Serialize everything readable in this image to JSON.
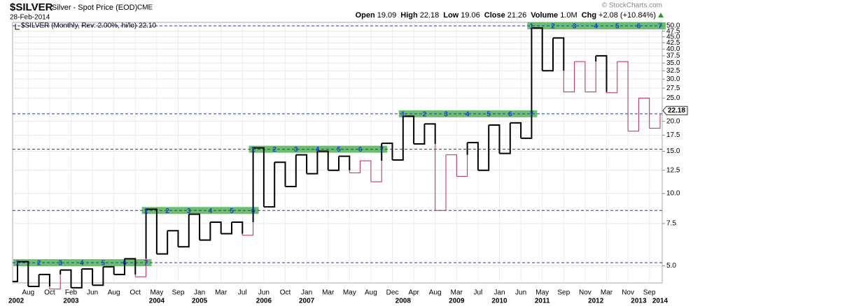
{
  "chart_data": {
    "type": "kagi",
    "symbol": "$SILVER",
    "title": "Silver - Spot Price (EOD)",
    "exchange": "CME",
    "date": "28-Feb-2014",
    "copyright": "© StockCharts.com",
    "quote": [
      {
        "label": "Open",
        "value": "19.09"
      },
      {
        "label": "High",
        "value": "22.18"
      },
      {
        "label": "Low",
        "value": "19.06"
      },
      {
        "label": "Close",
        "value": "21.26"
      },
      {
        "label": "Volume",
        "value": "1.0M"
      },
      {
        "label": "Chg",
        "value": "+2.08 (+10.84%)"
      }
    ],
    "legend": "$SILVER (Monthly, Rev: 2.00%, hi/lo) 22.10",
    "last_price": {
      "value": 22.18,
      "label": "22.18"
    },
    "months": [
      null,
      null,
      "Aug",
      null,
      "Oct",
      null,
      "Feb",
      null,
      "Jun",
      null,
      "Aug",
      null,
      "Oct",
      null,
      "May",
      null,
      "Sep",
      null,
      "Jan",
      null,
      "Mar",
      null,
      "Jul",
      null,
      "Jun",
      null,
      "Oct",
      null,
      "Jan",
      null,
      "Mar",
      null,
      "May",
      null,
      "Aug",
      null,
      "Dec",
      null,
      "Apr",
      null,
      "Aug",
      null,
      "Mar",
      null,
      "Jul",
      null,
      "Jan",
      null,
      "Jun",
      null,
      "May",
      null,
      "Sep",
      null,
      "Nov",
      null,
      "Mar",
      null,
      "Nov",
      null,
      "Sep",
      null
    ],
    "years": [
      "2002",
      null,
      null,
      null,
      null,
      null,
      "2003",
      null,
      null,
      null,
      null,
      null,
      null,
      null,
      "2004",
      null,
      null,
      null,
      "2005",
      null,
      null,
      null,
      null,
      null,
      "2006",
      null,
      null,
      null,
      "2007",
      null,
      null,
      null,
      null,
      null,
      null,
      null,
      null,
      "2008",
      null,
      null,
      null,
      null,
      "2009",
      null,
      null,
      null,
      "2010",
      null,
      null,
      null,
      "2011",
      null,
      null,
      null,
      null,
      "2012",
      null,
      null,
      null,
      "2013",
      null,
      "2014"
    ],
    "values": [
      4.3,
      5.2,
      4.1,
      4.6,
      4.0,
      4.8,
      4.05,
      4.85,
      4.15,
      4.95,
      4.6,
      5.35,
      4.5,
      8.6,
      5.6,
      7.0,
      6.0,
      8.2,
      6.4,
      7.6,
      6.8,
      7.6,
      6.7,
      15.5,
      8.8,
      13.5,
      10.7,
      14.5,
      12.1,
      15.0,
      12.5,
      14.3,
      12.2,
      13.7,
      11.2,
      16.2,
      13.8,
      21.0,
      16.1,
      19.5,
      8.5,
      14.5,
      11.8,
      16.3,
      12.5,
      19.3,
      14.7,
      19.7,
      17.0,
      49.0,
      32.5,
      44.5,
      26.5,
      35.5,
      26.5,
      37.5,
      26.3,
      35.5,
      18.2,
      25.0,
      18.7,
      21.5
    ],
    "yang_color": "#000000",
    "yin_color": "#c0245c",
    "bands": [
      {
        "level": 5.15,
        "columns": [
          1,
          13
        ],
        "labels": [
          1,
          2,
          3,
          4,
          5,
          6,
          7
        ]
      },
      {
        "level": 8.5,
        "columns": [
          13,
          23
        ],
        "labels": [
          1,
          2,
          3,
          4,
          5,
          6
        ]
      },
      {
        "level": 15.3,
        "columns": [
          23,
          35
        ],
        "labels": [
          1,
          2,
          3,
          4,
          5,
          6,
          7
        ]
      },
      {
        "level": 21.5,
        "columns": [
          37,
          49
        ],
        "labels": [
          1,
          2,
          3,
          4,
          5,
          6,
          7
        ]
      },
      {
        "level": 50.0,
        "columns": [
          49,
          61
        ],
        "labels": [
          1,
          2,
          3,
          4,
          5,
          6,
          7
        ]
      }
    ],
    "band_color": "#5cb85c",
    "line_color": "#2233cc",
    "log_scale": true,
    "grid": true,
    "ylim": [
      4.24,
      51.7
    ],
    "yticks": [
      {
        "value": 5,
        "label": "5.0"
      },
      {
        "value": 7.5,
        "label": "7.5"
      },
      {
        "value": 10,
        "label": "10.0"
      },
      {
        "value": 12.5,
        "label": "12.5"
      },
      {
        "value": 15,
        "label": "15.0"
      },
      {
        "value": 17.5,
        "label": "17.5"
      },
      {
        "value": 20,
        "label": "20.0"
      },
      {
        "value": 25,
        "label": "25.0"
      },
      {
        "value": 27.5,
        "label": "27.5"
      },
      {
        "value": 30,
        "label": "30.0"
      },
      {
        "value": 32.5,
        "label": "32.5"
      },
      {
        "value": 35,
        "label": "35.0"
      },
      {
        "value": 37.5,
        "label": "37.5"
      },
      {
        "value": 40,
        "label": "40.0"
      },
      {
        "value": 42.5,
        "label": "42.5"
      },
      {
        "value": 45,
        "label": "45.0"
      },
      {
        "value": 47.5,
        "label": "47.5"
      },
      {
        "value": 50,
        "label": "50.0"
      }
    ]
  }
}
